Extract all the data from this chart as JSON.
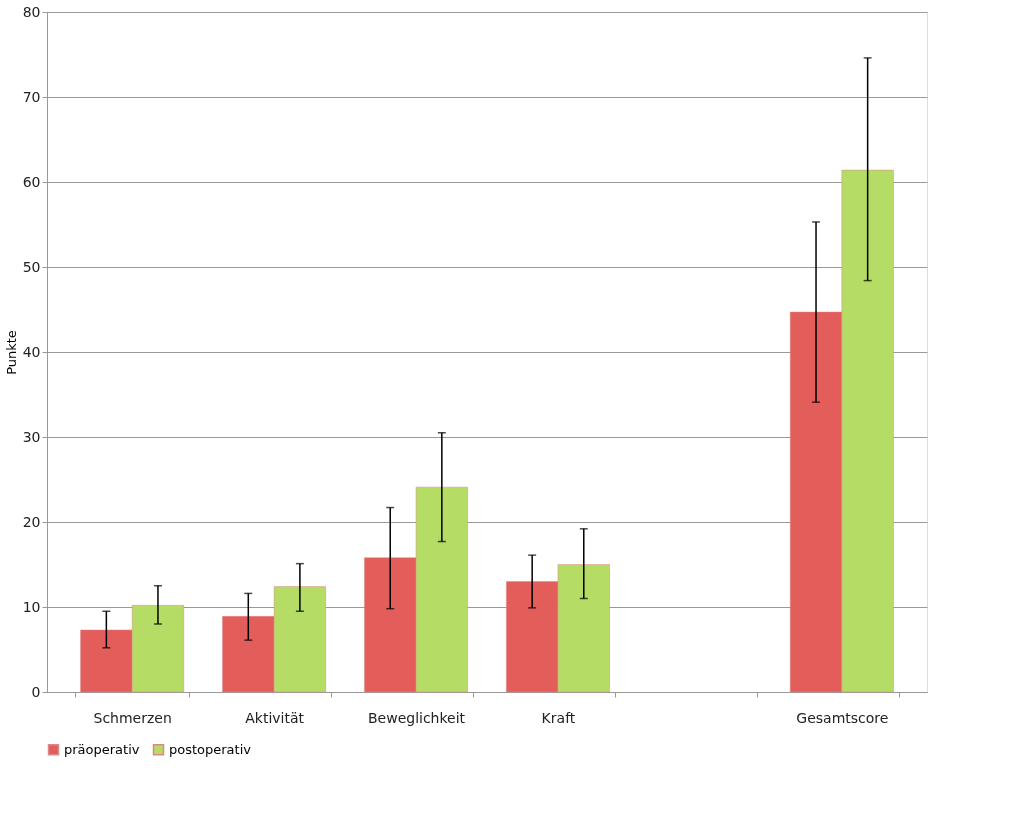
{
  "chart_data": {
    "type": "bar",
    "ylabel": "Punkte",
    "categories": [
      "Schmerzen",
      "Aktivität",
      "Beweglichkeit",
      "Kraft",
      null,
      "Gesamtscore"
    ],
    "series": [
      {
        "name": "präoperativ",
        "color": "#e35d5a",
        "values": [
          7.3,
          8.9,
          15.8,
          13.0,
          null,
          44.7
        ],
        "errors": [
          [
            5.2,
            9.5
          ],
          [
            6.1,
            11.6
          ],
          [
            9.8,
            21.7
          ],
          [
            9.9,
            16.1
          ],
          null,
          [
            34.1,
            55.3
          ]
        ]
      },
      {
        "name": "postoperativ",
        "color": "#b5dc64",
        "values": [
          10.2,
          12.4,
          24.1,
          15.0,
          null,
          61.4
        ],
        "errors": [
          [
            8.0,
            12.5
          ],
          [
            9.5,
            15.1
          ],
          [
            17.7,
            30.5
          ],
          [
            11.0,
            19.2
          ],
          null,
          [
            48.4,
            74.6
          ]
        ]
      }
    ],
    "ylim": [
      0,
      80
    ],
    "yticks": [
      0,
      10,
      20,
      30,
      40,
      50,
      60,
      70,
      80
    ],
    "grid": "y",
    "legend": "bottom"
  }
}
